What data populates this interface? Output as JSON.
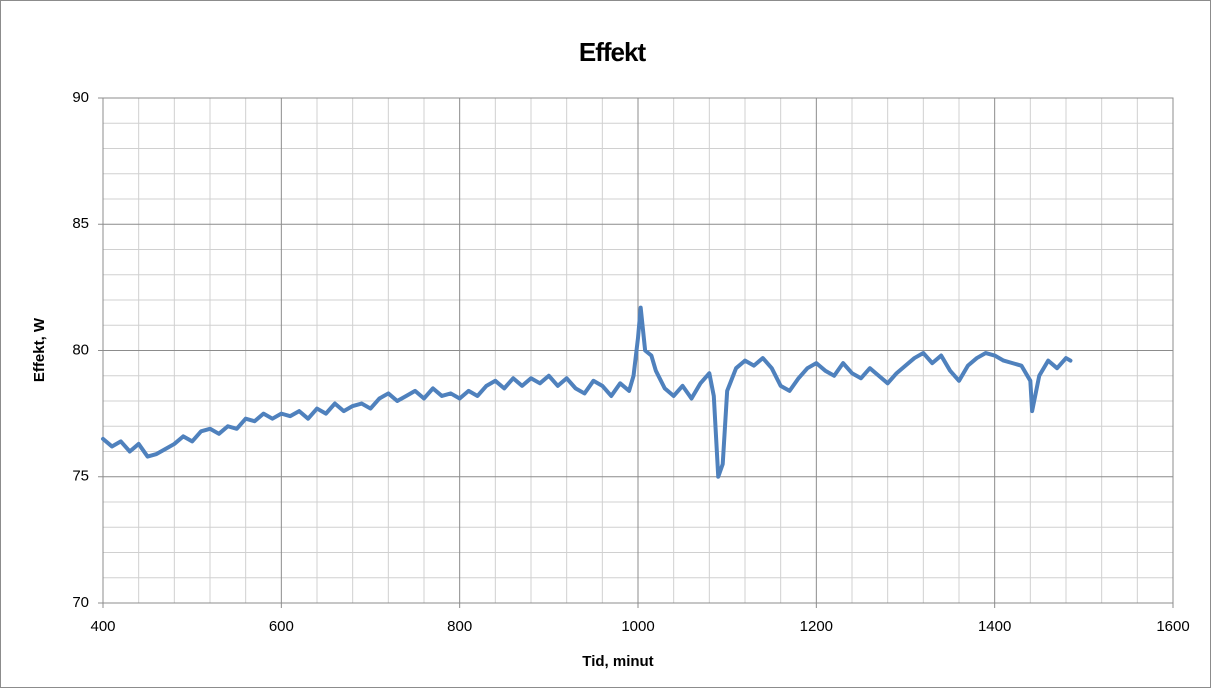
{
  "chart_data": {
    "type": "line",
    "title": "Effekt",
    "x_label": "Tid, minut",
    "y_label": "Effekt, W",
    "xlim": [
      400,
      1600
    ],
    "xticks": [
      400,
      600,
      800,
      1000,
      1200,
      1400,
      1600
    ],
    "ylim": [
      70,
      90
    ],
    "yticks": [
      70,
      75,
      80,
      85,
      90
    ],
    "grid": true,
    "minor_grid": true,
    "x": [
      400,
      410,
      420,
      430,
      440,
      450,
      460,
      470,
      480,
      490,
      500,
      510,
      520,
      530,
      540,
      550,
      560,
      570,
      580,
      590,
      600,
      610,
      620,
      630,
      640,
      650,
      660,
      670,
      680,
      690,
      700,
      710,
      720,
      730,
      740,
      750,
      760,
      770,
      780,
      790,
      800,
      810,
      820,
      830,
      840,
      850,
      860,
      870,
      880,
      890,
      900,
      910,
      920,
      930,
      940,
      950,
      960,
      970,
      980,
      990,
      995,
      1000,
      1003,
      1008,
      1015,
      1020,
      1030,
      1040,
      1050,
      1060,
      1070,
      1080,
      1085,
      1090,
      1095,
      1100,
      1110,
      1120,
      1130,
      1140,
      1150,
      1160,
      1170,
      1180,
      1190,
      1200,
      1210,
      1220,
      1230,
      1240,
      1250,
      1260,
      1270,
      1280,
      1290,
      1300,
      1310,
      1320,
      1330,
      1340,
      1350,
      1360,
      1370,
      1380,
      1390,
      1400,
      1410,
      1420,
      1430,
      1440,
      1442,
      1450,
      1460,
      1470,
      1480,
      1485
    ],
    "series": [
      {
        "name": "Effekt",
        "color": "#4f81bd",
        "values": [
          76.5,
          76.2,
          76.4,
          76.0,
          76.3,
          75.8,
          75.9,
          76.1,
          76.3,
          76.6,
          76.4,
          76.8,
          76.9,
          76.7,
          77.0,
          76.9,
          77.3,
          77.2,
          77.5,
          77.3,
          77.5,
          77.4,
          77.6,
          77.3,
          77.7,
          77.5,
          77.9,
          77.6,
          77.8,
          77.9,
          77.7,
          78.1,
          78.3,
          78.0,
          78.2,
          78.4,
          78.1,
          78.5,
          78.2,
          78.3,
          78.1,
          78.4,
          78.2,
          78.6,
          78.8,
          78.5,
          78.9,
          78.6,
          78.9,
          78.7,
          79.0,
          78.6,
          78.9,
          78.5,
          78.3,
          78.8,
          78.6,
          78.2,
          78.7,
          78.4,
          79.0,
          80.5,
          81.7,
          80.0,
          79.8,
          79.2,
          78.5,
          78.2,
          78.6,
          78.1,
          78.7,
          79.1,
          78.2,
          75.0,
          75.5,
          78.4,
          79.3,
          79.6,
          79.4,
          79.7,
          79.3,
          78.6,
          78.4,
          78.9,
          79.3,
          79.5,
          79.2,
          79.0,
          79.5,
          79.1,
          78.9,
          79.3,
          79.0,
          78.7,
          79.1,
          79.4,
          79.7,
          79.9,
          79.5,
          79.8,
          79.2,
          78.8,
          79.4,
          79.7,
          79.9,
          79.8,
          79.6,
          79.5,
          79.4,
          78.8,
          77.6,
          79.0,
          79.6,
          79.3,
          79.7,
          79.6
        ]
      }
    ]
  }
}
